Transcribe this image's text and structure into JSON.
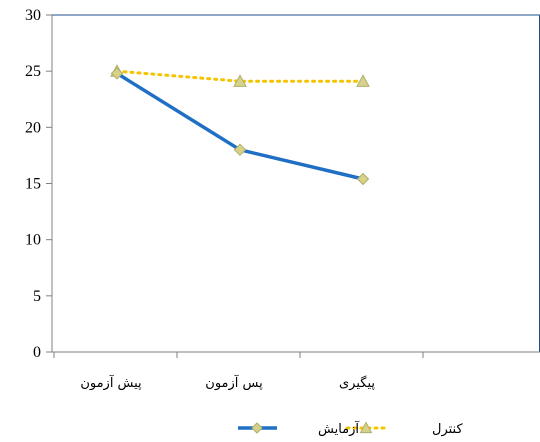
{
  "chart_data": {
    "type": "line",
    "categories": [
      "پیش آزمون",
      "پس آزمون",
      "پیگیری"
    ],
    "series": [
      {
        "name": "آزمایش",
        "values": [
          24.8,
          18.0,
          15.4
        ],
        "color": "#1f6fc5",
        "marker": "diamond",
        "style": "solid"
      },
      {
        "name": "کنترل",
        "values": [
          25.0,
          24.1,
          24.1
        ],
        "color": "#f5c400",
        "marker": "triangle",
        "style": "dotted"
      }
    ],
    "ylim": [
      0,
      30
    ],
    "yticks": [
      "0",
      "5",
      "10",
      "15",
      "20",
      "25",
      "30"
    ],
    "xlabel": "",
    "ylabel": "",
    "title": "",
    "grid": false,
    "legend_position": "bottom",
    "colors": {
      "axis": "#808080",
      "border": "#1f4f8c",
      "marker_fill": "#d6d28a"
    }
  }
}
